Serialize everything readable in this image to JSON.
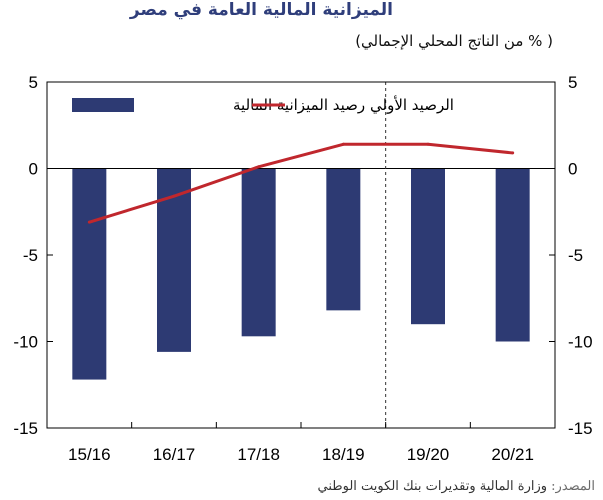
{
  "title": "الميزانية المالية العامة في مصر",
  "subtitle": "( % من الناتج المحلي الإجمالي)",
  "source": {
    "label": "المصدر:",
    "text": "وزارة المالية وتقديرات بنك الكويت الوطني"
  },
  "colors": {
    "bar": "#2d3a73",
    "line": "#c0272d",
    "axis": "#000000",
    "divider": "#333333"
  },
  "chart_data": {
    "type": "bar",
    "categories": [
      "15/16",
      "16/17",
      "17/18",
      "18/19",
      "19/20",
      "20/21"
    ],
    "series": [
      {
        "name": "رصيد الميزانية المالية",
        "type": "bar",
        "values": [
          -12.2,
          -10.6,
          -9.7,
          -8.2,
          -9.0,
          -10.0
        ]
      },
      {
        "name": "الرصيد الأولي",
        "type": "line",
        "values": [
          -3.1,
          -1.6,
          0.1,
          1.4,
          1.4,
          0.9
        ]
      }
    ],
    "ylim": [
      -15,
      5
    ],
    "yticks": [
      5,
      0,
      -5,
      -10,
      -15
    ],
    "ytick_labels": [
      "5",
      "0",
      "-5",
      "-10",
      "-15"
    ],
    "legend_position": "top",
    "forecast_divider_between": [
      "18/19",
      "19/20"
    ],
    "grid": false
  }
}
